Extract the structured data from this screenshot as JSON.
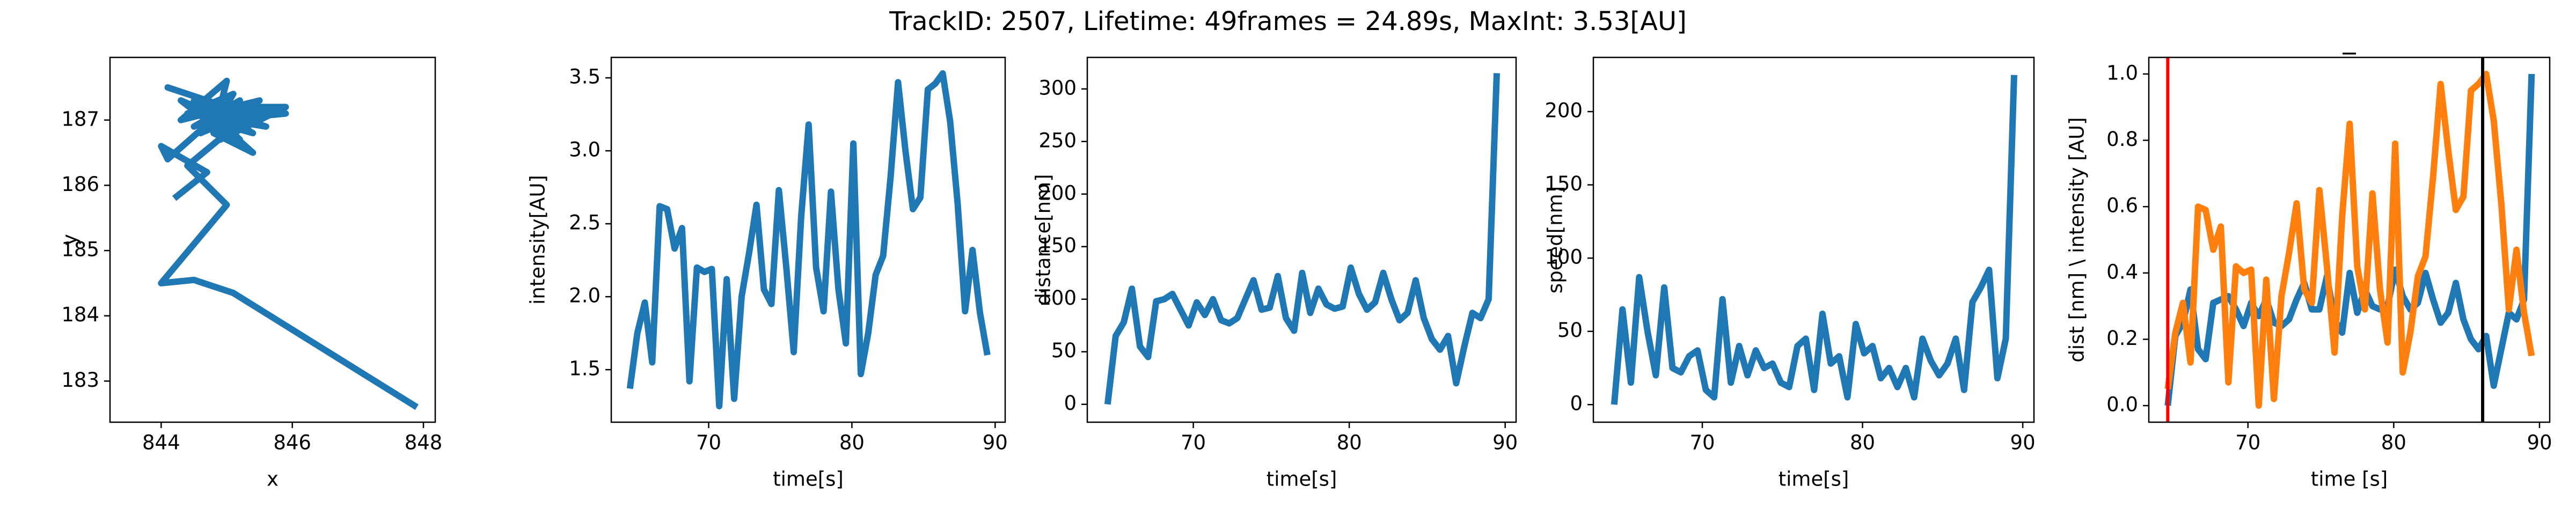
{
  "title": "TrackID: 2507, Lifetime: 49frames = 24.89s, MaxInt: 3.53[AU]",
  "chart_data": [
    {
      "type": "line",
      "xlabel": "x",
      "ylabel": "y",
      "x": [
        844.2,
        844.7,
        844.0,
        844.1,
        845.0,
        844.1,
        845.3,
        844.6,
        845.8,
        844.9,
        845.5,
        844.3,
        845.0,
        844.8,
        845.4,
        844.5,
        845.9,
        844.9,
        845.2,
        844.7,
        845.6,
        844.4,
        845.1,
        844.8,
        845.3,
        844.6,
        845.9,
        844.9,
        845.0,
        844.5,
        845.2,
        844.7,
        845.4,
        844.9,
        845.1,
        844.8,
        845.3,
        844.6,
        845.0,
        844.3,
        845.2,
        844.8,
        845.0,
        844.4,
        845.0,
        844.0,
        844.5,
        845.1,
        847.9
      ],
      "series": [
        {
          "color": "#1f77b4",
          "values": [
            185.8,
            186.2,
            186.6,
            186.4,
            187.2,
            187.5,
            187.1,
            186.9,
            187.2,
            186.8,
            187.3,
            187.0,
            187.6,
            186.8,
            186.5,
            187.3,
            187.1,
            187.0,
            186.7,
            187.2,
            186.9,
            187.1,
            187.4,
            186.9,
            187.0,
            187.2,
            187.2,
            186.7,
            187.1,
            186.9,
            187.3,
            187.0,
            186.8,
            187.1,
            186.9,
            187.2,
            187.1,
            186.8,
            187.0,
            187.3,
            186.6,
            187.1,
            186.8,
            186.3,
            185.7,
            184.5,
            184.55,
            184.35,
            182.6
          ]
        }
      ],
      "xlim": [
        843.22,
        848.18
      ],
      "xticks": [
        844,
        846,
        848
      ],
      "ylim": [
        182.37,
        187.96
      ],
      "yticks": [
        183,
        184,
        185,
        186,
        187
      ]
    },
    {
      "type": "line",
      "xlabel": "time[s]",
      "ylabel": "intensity[AU]",
      "x": [
        64.5,
        65.02,
        65.54,
        66.06,
        66.58,
        67.1,
        67.62,
        68.14,
        68.66,
        69.18,
        69.7,
        70.22,
        70.74,
        71.26,
        71.78,
        72.3,
        72.82,
        73.34,
        73.86,
        74.38,
        74.9,
        75.42,
        75.94,
        76.46,
        76.98,
        77.5,
        78.02,
        78.54,
        79.06,
        79.58,
        80.1,
        80.62,
        81.14,
        81.66,
        82.18,
        82.7,
        83.22,
        83.74,
        84.26,
        84.78,
        85.3,
        85.82,
        86.34,
        86.86,
        87.38,
        87.9,
        88.42,
        88.94,
        89.46
      ],
      "series": [
        {
          "color": "#1f77b4",
          "values": [
            1.37,
            1.75,
            1.96,
            1.55,
            2.62,
            2.6,
            2.33,
            2.47,
            1.42,
            2.2,
            2.17,
            2.19,
            1.25,
            2.12,
            1.3,
            2.0,
            2.3,
            2.63,
            2.05,
            1.95,
            2.73,
            2.2,
            1.62,
            2.55,
            3.18,
            2.2,
            1.9,
            2.72,
            2.05,
            1.68,
            3.05,
            1.47,
            1.75,
            2.15,
            2.28,
            2.82,
            3.47,
            3.0,
            2.6,
            2.68,
            3.42,
            3.46,
            3.53,
            3.2,
            2.64,
            1.9,
            2.32,
            1.89,
            1.6
          ]
        }
      ],
      "xlim": [
        63.2,
        90.7
      ],
      "xticks": [
        70,
        80,
        90
      ],
      "ylim": [
        1.14,
        3.64
      ],
      "yticks": [
        1.5,
        {
          "value": 2,
          "label": "2.0"
        },
        2.5,
        {
          "value": 3,
          "label": "3.0"
        },
        3.5
      ]
    },
    {
      "type": "line",
      "xlabel": "time[s]",
      "ylabel": "distance[nm]",
      "x": [
        64.5,
        65.02,
        65.54,
        66.06,
        66.58,
        67.1,
        67.62,
        68.14,
        68.66,
        69.18,
        69.7,
        70.22,
        70.74,
        71.26,
        71.78,
        72.3,
        72.82,
        73.34,
        73.86,
        74.38,
        74.9,
        75.42,
        75.94,
        76.46,
        76.98,
        77.5,
        78.02,
        78.54,
        79.06,
        79.58,
        80.1,
        80.62,
        81.14,
        81.66,
        82.18,
        82.7,
        83.22,
        83.74,
        84.26,
        84.78,
        85.3,
        85.82,
        86.34,
        86.86,
        87.38,
        87.9,
        88.42,
        88.94,
        89.46
      ],
      "series": [
        {
          "color": "#1f77b4",
          "values": [
            0,
            65,
            78,
            110,
            55,
            45,
            98,
            100,
            105,
            90,
            75,
            97,
            85,
            100,
            80,
            77,
            82,
            100,
            118,
            90,
            92,
            122,
            82,
            70,
            125,
            87,
            110,
            95,
            91,
            93,
            130,
            105,
            90,
            97,
            125,
            100,
            80,
            87,
            118,
            82,
            62,
            52,
            65,
            20,
            55,
            87,
            82,
            100,
            315
          ]
        }
      ],
      "xlim": [
        63.2,
        90.7
      ],
      "xticks": [
        70,
        80,
        90
      ],
      "ylim": [
        -17,
        330
      ],
      "yticks": [
        0,
        50,
        100,
        150,
        200,
        250,
        300
      ]
    },
    {
      "type": "line",
      "xlabel": "time[s]",
      "ylabel": "speed[nm]",
      "x": [
        64.5,
        65.02,
        65.54,
        66.06,
        66.58,
        67.1,
        67.62,
        68.14,
        68.66,
        69.18,
        69.7,
        70.22,
        70.74,
        71.26,
        71.78,
        72.3,
        72.82,
        73.34,
        73.86,
        74.38,
        74.9,
        75.42,
        75.94,
        76.46,
        76.98,
        77.5,
        78.02,
        78.54,
        79.06,
        79.58,
        80.1,
        80.62,
        81.14,
        81.66,
        82.18,
        82.7,
        83.22,
        83.74,
        84.26,
        84.78,
        85.3,
        85.82,
        86.34,
        86.86,
        87.38,
        87.9,
        88.42,
        88.94,
        89.46
      ],
      "series": [
        {
          "color": "#1f77b4",
          "values": [
            0,
            65,
            15,
            87,
            50,
            20,
            80,
            25,
            22,
            33,
            37,
            10,
            5,
            72,
            15,
            40,
            20,
            37,
            25,
            28,
            15,
            12,
            40,
            45,
            10,
            62,
            28,
            33,
            5,
            55,
            35,
            40,
            18,
            25,
            12,
            25,
            5,
            45,
            30,
            20,
            28,
            45,
            10,
            70,
            80,
            92,
            18,
            45,
            225
          ]
        }
      ],
      "xlim": [
        63.2,
        90.7
      ],
      "xticks": [
        70,
        80,
        90
      ],
      "ylim": [
        -12,
        237
      ],
      "yticks": [
        0,
        50,
        100,
        150,
        200
      ]
    },
    {
      "type": "line",
      "title": "_",
      "xlabel": "time [s]",
      "ylabel": "dist [nm] \\ intensity [AU]",
      "x": [
        64.5,
        65.02,
        65.54,
        66.06,
        66.58,
        67.1,
        67.62,
        68.14,
        68.66,
        69.18,
        69.7,
        70.22,
        70.74,
        71.26,
        71.78,
        72.3,
        72.82,
        73.34,
        73.86,
        74.38,
        74.9,
        75.42,
        75.94,
        76.46,
        76.98,
        77.5,
        78.02,
        78.54,
        79.06,
        79.58,
        80.1,
        80.62,
        81.14,
        81.66,
        82.18,
        82.7,
        83.22,
        83.74,
        84.26,
        84.78,
        85.3,
        85.82,
        86.34,
        86.86,
        87.38,
        87.9,
        88.42,
        88.94,
        89.46
      ],
      "series": [
        {
          "color": "#1f77b4",
          "values": [
            0,
            0.21,
            0.25,
            0.35,
            0.17,
            0.14,
            0.31,
            0.32,
            0.33,
            0.29,
            0.24,
            0.31,
            0.27,
            0.32,
            0.25,
            0.24,
            0.26,
            0.32,
            0.37,
            0.29,
            0.29,
            0.39,
            0.26,
            0.22,
            0.4,
            0.28,
            0.35,
            0.3,
            0.29,
            0.3,
            0.41,
            0.33,
            0.29,
            0.31,
            0.4,
            0.32,
            0.25,
            0.28,
            0.37,
            0.26,
            0.2,
            0.17,
            0.21,
            0.06,
            0.17,
            0.28,
            0.26,
            0.32,
            1.0
          ]
        },
        {
          "color": "#ff7f0e",
          "values": [
            0.05,
            0.22,
            0.31,
            0.13,
            0.6,
            0.59,
            0.47,
            0.54,
            0.07,
            0.42,
            0.4,
            0.41,
            0,
            0.38,
            0.02,
            0.33,
            0.46,
            0.61,
            0.35,
            0.31,
            0.65,
            0.42,
            0.16,
            0.57,
            0.85,
            0.42,
            0.29,
            0.64,
            0.35,
            0.19,
            0.79,
            0.1,
            0.22,
            0.39,
            0.45,
            0.69,
            0.97,
            0.77,
            0.59,
            0.63,
            0.95,
            0.97,
            1.0,
            0.86,
            0.61,
            0.29,
            0.47,
            0.28,
            0.15
          ]
        }
      ],
      "vlines": [
        {
          "x": 64.5,
          "color": "red"
        },
        {
          "x": 86.1,
          "color": "black"
        }
      ],
      "xlim": [
        63.2,
        90.7
      ],
      "xticks": [
        70,
        80,
        90
      ],
      "ylim": [
        -0.05,
        1.05
      ],
      "yticks": [
        {
          "value": 0,
          "label": "0.0"
        },
        0.2,
        0.4,
        0.6,
        0.8,
        {
          "value": 1,
          "label": "1.0"
        }
      ]
    }
  ]
}
